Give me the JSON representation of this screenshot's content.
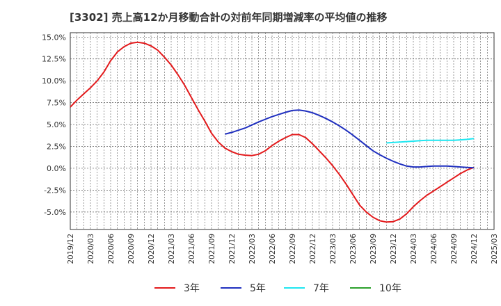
{
  "chart_data": {
    "type": "line",
    "title": "[3302]  売上高12か月移動合計の対前年同期増減率の平均値の推移",
    "xlabel": "",
    "ylabel": "",
    "y_unit": "%",
    "ylim": [
      -7.0,
      15.5
    ],
    "y_ticks": [
      15.0,
      12.5,
      10.0,
      7.5,
      5.0,
      2.5,
      0.0,
      -2.5,
      -5.0
    ],
    "y_tick_labels": [
      "15.0%",
      "12.5%",
      "10.0%",
      "7.5%",
      "5.0%",
      "2.5%",
      "0.0%",
      "-2.5%",
      "-5.0%"
    ],
    "x_range": [
      "2019-12",
      "2025-03"
    ],
    "x_tick_labels": [
      "2019/12",
      "2020/03",
      "2020/06",
      "2020/09",
      "2020/12",
      "2021/03",
      "2021/06",
      "2021/09",
      "2021/12",
      "2022/03",
      "2022/06",
      "2022/09",
      "2022/12",
      "2023/03",
      "2023/06",
      "2023/09",
      "2023/12",
      "2024/03",
      "2024/06",
      "2024/09",
      "2024/12",
      "2025/03"
    ],
    "grid": true,
    "legend_position": "bottom",
    "series": [
      {
        "name": "3年",
        "color": "#e31a1c",
        "points": [
          [
            "2019-12",
            7.0
          ],
          [
            "2020-01",
            7.8
          ],
          [
            "2020-02",
            8.5
          ],
          [
            "2020-03",
            9.2
          ],
          [
            "2020-04",
            10.0
          ],
          [
            "2020-05",
            11.0
          ],
          [
            "2020-06",
            12.3
          ],
          [
            "2020-07",
            13.3
          ],
          [
            "2020-08",
            13.9
          ],
          [
            "2020-09",
            14.3
          ],
          [
            "2020-10",
            14.4
          ],
          [
            "2020-11",
            14.3
          ],
          [
            "2020-12",
            14.0
          ],
          [
            "2020-13",
            13.5
          ],
          [
            "2021-02",
            12.7
          ],
          [
            "2021-03",
            11.8
          ],
          [
            "2021-04",
            10.7
          ],
          [
            "2021-05",
            9.5
          ],
          [
            "2021-06",
            8.1
          ],
          [
            "2021-07",
            6.7
          ],
          [
            "2021-08",
            5.4
          ],
          [
            "2021-09",
            4.0
          ],
          [
            "2021-10",
            3.0
          ],
          [
            "2021-11",
            2.3
          ],
          [
            "2021-12",
            1.9
          ],
          [
            "2022-01",
            1.6
          ],
          [
            "2022-02",
            1.5
          ],
          [
            "2022-03",
            1.45
          ],
          [
            "2022-04",
            1.6
          ],
          [
            "2022-05",
            2.0
          ],
          [
            "2022-06",
            2.6
          ],
          [
            "2022-07",
            3.1
          ],
          [
            "2022-08",
            3.5
          ],
          [
            "2022-09",
            3.85
          ],
          [
            "2022-10",
            3.85
          ],
          [
            "2022-11",
            3.5
          ],
          [
            "2022-12",
            2.8
          ],
          [
            "2023-01",
            2.0
          ],
          [
            "2023-02",
            1.2
          ],
          [
            "2023-03",
            0.3
          ],
          [
            "2023-04",
            -0.7
          ],
          [
            "2023-05",
            -1.8
          ],
          [
            "2023-06",
            -3.0
          ],
          [
            "2023-07",
            -4.2
          ],
          [
            "2023-08",
            -5.0
          ],
          [
            "2023-09",
            -5.6
          ],
          [
            "2023-10",
            -6.0
          ],
          [
            "2023-11",
            -6.15
          ],
          [
            "2023-12",
            -6.1
          ],
          [
            "2024-01",
            -5.8
          ],
          [
            "2024-02",
            -5.2
          ],
          [
            "2024-03",
            -4.4
          ],
          [
            "2024-04",
            -3.7
          ],
          [
            "2024-05",
            -3.1
          ],
          [
            "2024-06",
            -2.6
          ],
          [
            "2024-07",
            -2.1
          ],
          [
            "2024-08",
            -1.6
          ],
          [
            "2024-09",
            -1.1
          ],
          [
            "2024-10",
            -0.6
          ],
          [
            "2024-11",
            -0.2
          ],
          [
            "2024-12",
            0.1
          ]
        ]
      },
      {
        "name": "5年",
        "color": "#1f2fbf",
        "points": [
          [
            "2021-11",
            3.9
          ],
          [
            "2021-12",
            4.1
          ],
          [
            "2022-01",
            4.35
          ],
          [
            "2022-02",
            4.6
          ],
          [
            "2022-03",
            4.95
          ],
          [
            "2022-04",
            5.3
          ],
          [
            "2022-05",
            5.6
          ],
          [
            "2022-06",
            5.9
          ],
          [
            "2022-07",
            6.15
          ],
          [
            "2022-08",
            6.4
          ],
          [
            "2022-09",
            6.6
          ],
          [
            "2022-10",
            6.65
          ],
          [
            "2022-11",
            6.55
          ],
          [
            "2022-12",
            6.35
          ],
          [
            "2023-01",
            6.05
          ],
          [
            "2023-02",
            5.7
          ],
          [
            "2023-03",
            5.3
          ],
          [
            "2023-04",
            4.85
          ],
          [
            "2023-05",
            4.35
          ],
          [
            "2023-06",
            3.8
          ],
          [
            "2023-07",
            3.2
          ],
          [
            "2023-08",
            2.6
          ],
          [
            "2023-09",
            2.0
          ],
          [
            "2023-10",
            1.55
          ],
          [
            "2023-11",
            1.15
          ],
          [
            "2023-12",
            0.8
          ],
          [
            "2024-01",
            0.5
          ],
          [
            "2024-02",
            0.25
          ],
          [
            "2024-03",
            0.15
          ],
          [
            "2024-04",
            0.15
          ],
          [
            "2024-05",
            0.2
          ],
          [
            "2024-06",
            0.25
          ],
          [
            "2024-07",
            0.25
          ],
          [
            "2024-08",
            0.25
          ],
          [
            "2024-09",
            0.2
          ],
          [
            "2024-10",
            0.15
          ],
          [
            "2024-11",
            0.1
          ],
          [
            "2024-12",
            0.05
          ]
        ]
      },
      {
        "name": "7年",
        "color": "#1ee6f0",
        "points": [
          [
            "2023-11",
            2.9
          ],
          [
            "2023-12",
            2.95
          ],
          [
            "2024-01",
            3.0
          ],
          [
            "2024-02",
            3.05
          ],
          [
            "2024-03",
            3.1
          ],
          [
            "2024-04",
            3.15
          ],
          [
            "2024-05",
            3.2
          ],
          [
            "2024-06",
            3.2
          ],
          [
            "2024-07",
            3.2
          ],
          [
            "2024-08",
            3.2
          ],
          [
            "2024-09",
            3.2
          ],
          [
            "2024-10",
            3.25
          ],
          [
            "2024-11",
            3.3
          ],
          [
            "2024-12",
            3.4
          ]
        ]
      },
      {
        "name": "10年",
        "color": "#2ca02c",
        "points": []
      }
    ]
  }
}
